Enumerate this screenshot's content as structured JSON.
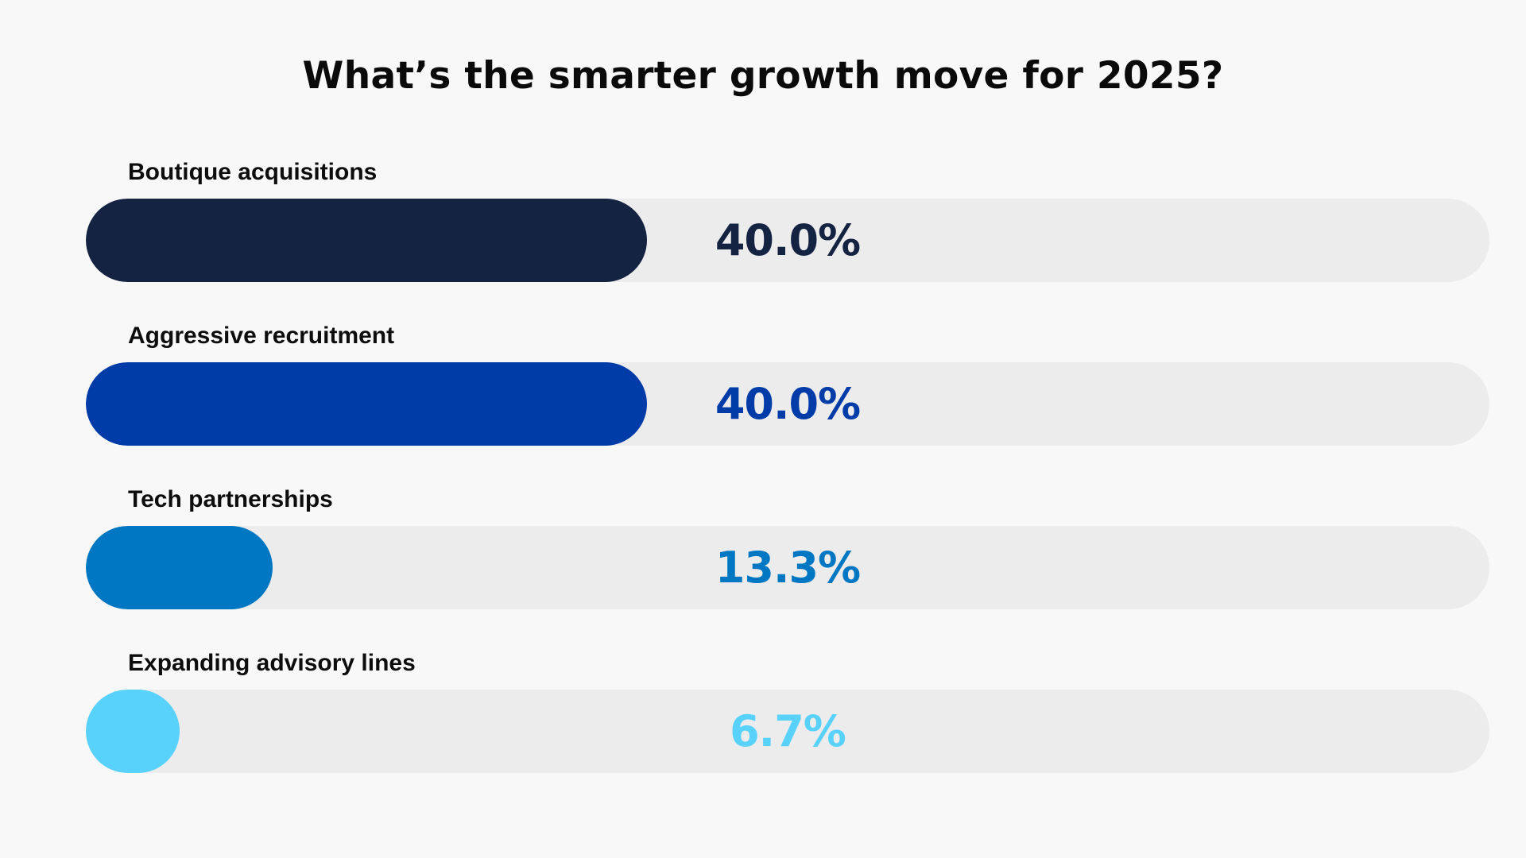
{
  "chart_data": {
    "type": "bar",
    "orientation": "horizontal",
    "title": "What’s the smarter growth move for 2025?",
    "categories": [
      "Boutique acquisitions",
      "Aggressive recruitment",
      "Tech partnerships",
      "Expanding advisory lines"
    ],
    "values": [
      40.0,
      40.0,
      13.3,
      6.7
    ],
    "value_labels": [
      "40.0%",
      "40.0%",
      "13.3%",
      "6.7%"
    ],
    "colors": [
      "#142342",
      "#003ca8",
      "#0077c2",
      "#58d1fb"
    ],
    "track_color": "#ececed",
    "ylim": [
      0,
      100
    ],
    "xlabel": "",
    "ylabel": "",
    "grid": false,
    "legend": "none"
  }
}
